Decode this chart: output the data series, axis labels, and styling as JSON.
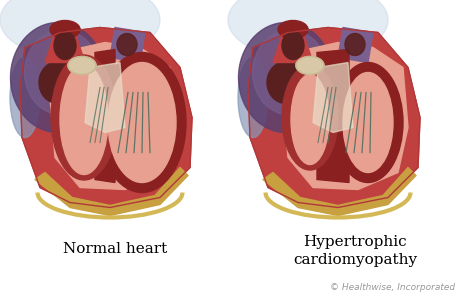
{
  "bg_color": "#ffffff",
  "title_left": "Normal heart",
  "title_right": "Hypertrophic\ncardiomyopathy",
  "copyright": "© Healthwise, Incorporated",
  "title_fontsize": 11,
  "copyright_fontsize": 6.5,
  "colors": {
    "outer_muscle": "#c04040",
    "inner_pink": "#e8a090",
    "fat_yellow": "#c8a040",
    "fat_light": "#d4b855",
    "dark_cavity": "#5a2020",
    "dark_purple": "#5a4070",
    "medium_purple": "#7a6090",
    "light_purple": "#9090b8",
    "blue_gray": "#8898b8",
    "dark_red_muscle": "#8a2020",
    "medium_red": "#a03030",
    "cream_white": "#e8dcc8",
    "chordae_green": "#507060",
    "valve_cream": "#d8c8a8",
    "bg_blue": "#c8d8e8",
    "atrium_dark": "#6a3050",
    "septum_color": "#7a1818",
    "lv_cavity": "#d0b0a0",
    "rv_wall": "#b03838"
  }
}
